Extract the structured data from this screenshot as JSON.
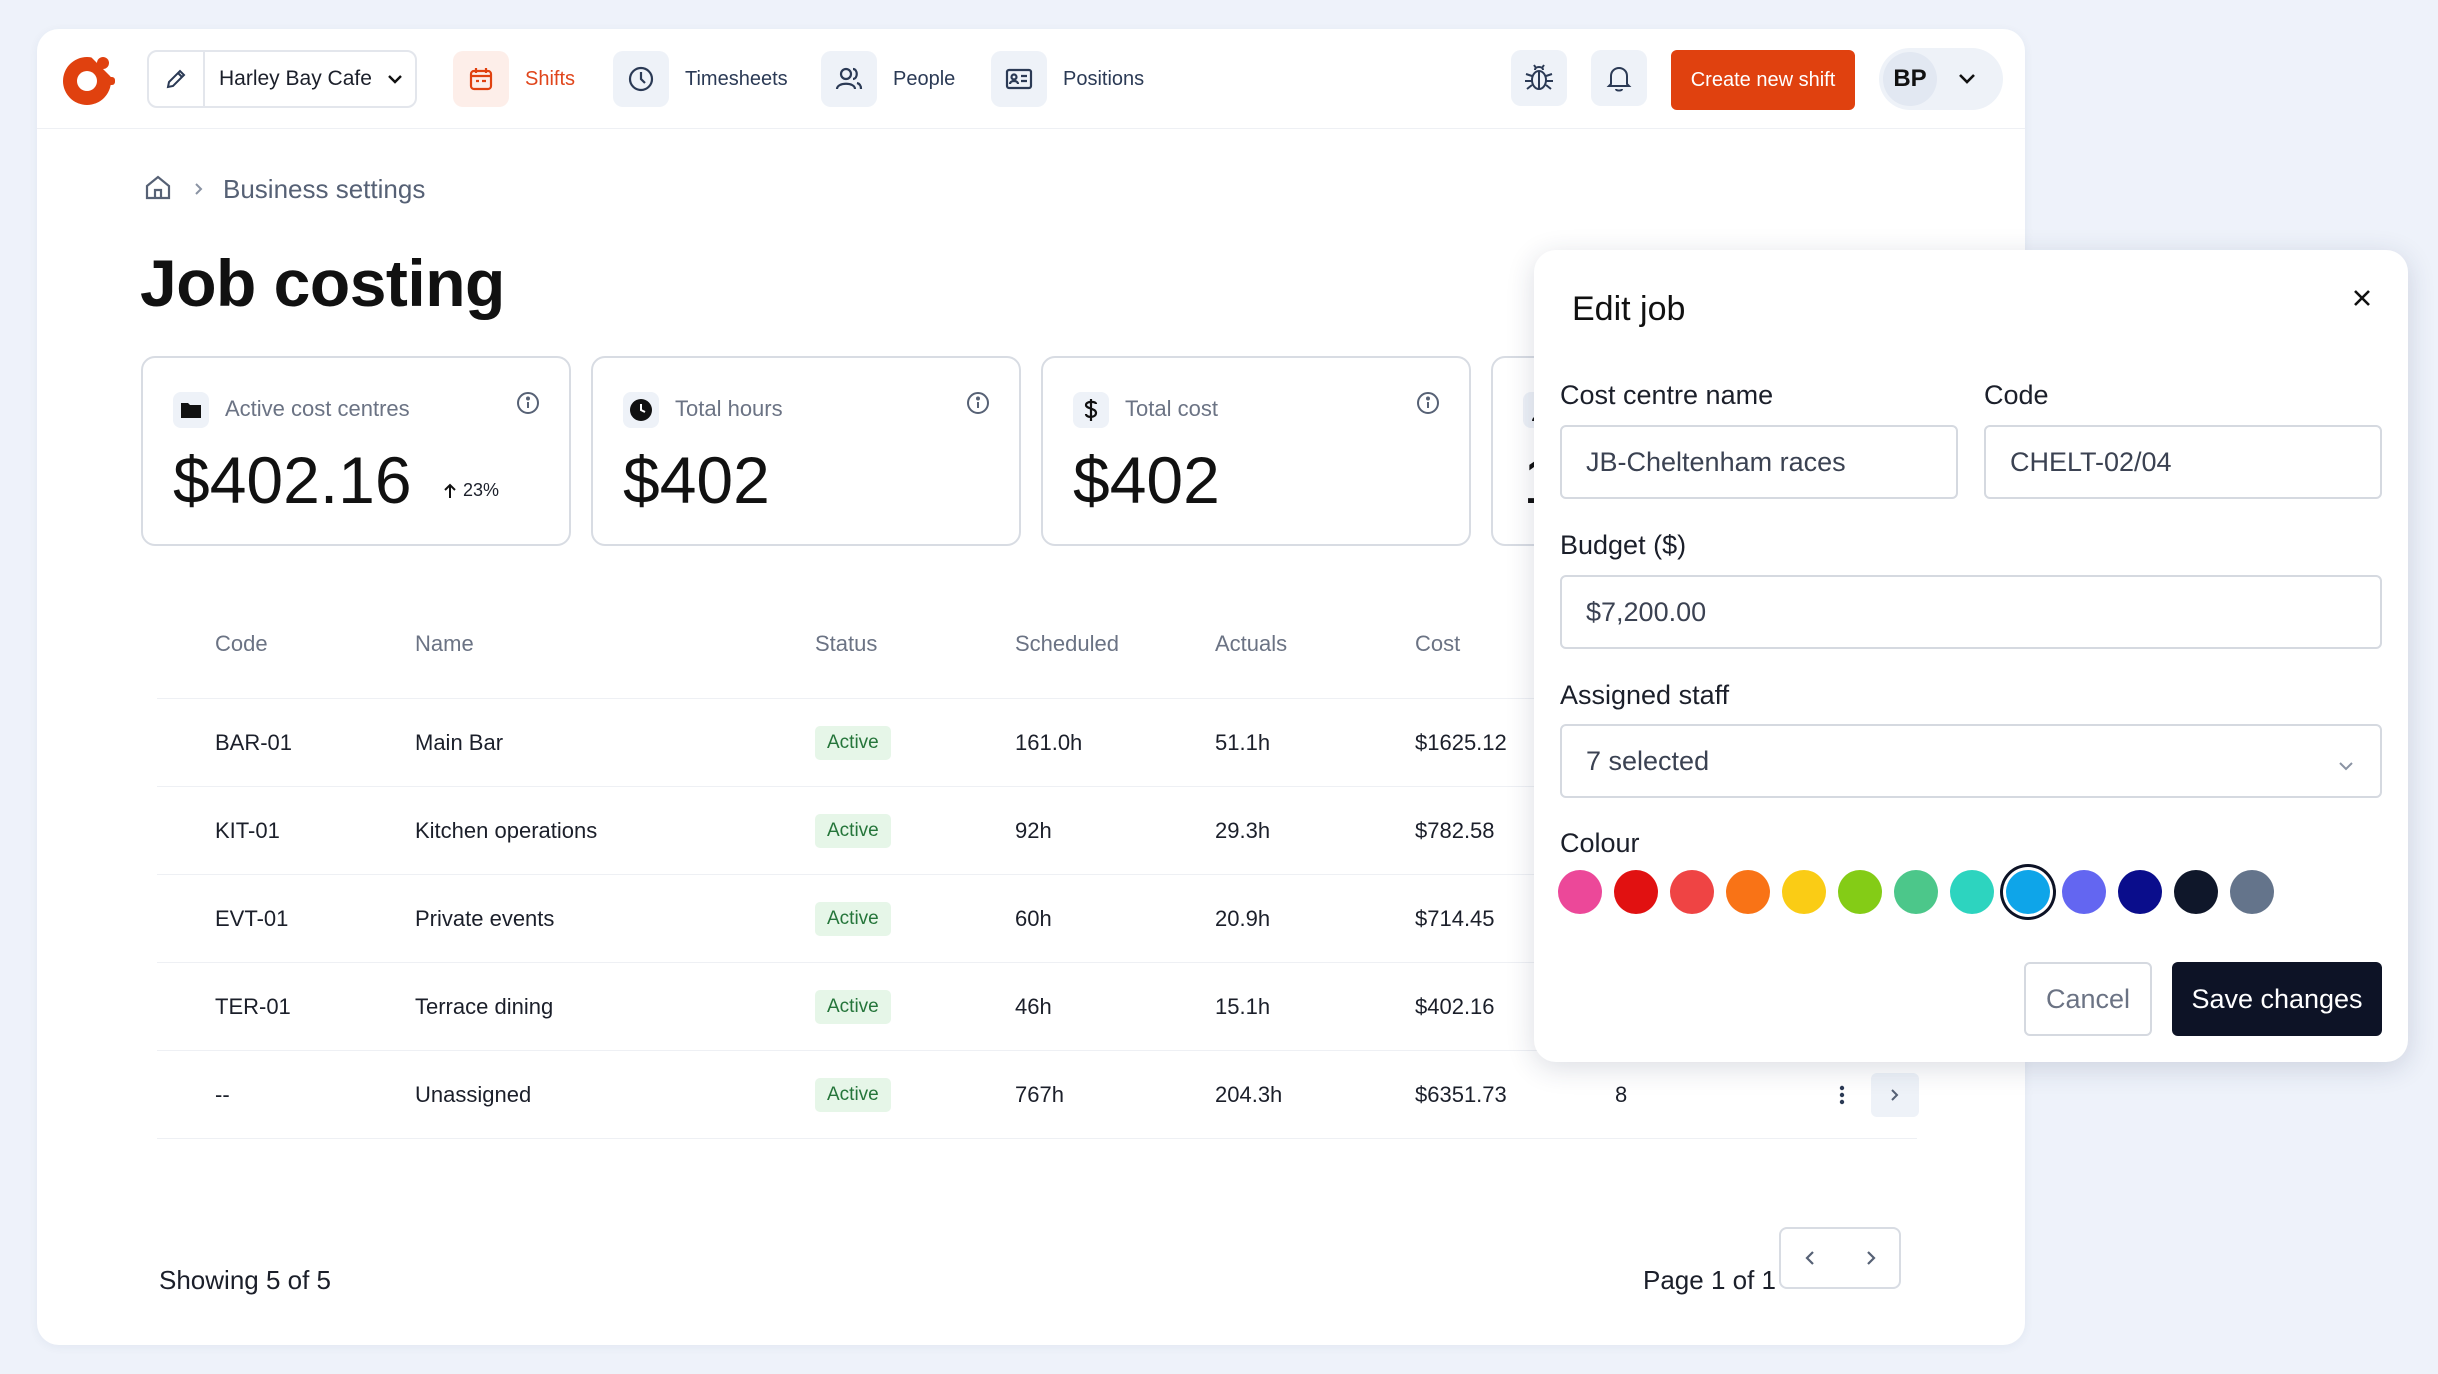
{
  "header": {
    "business_name": "Harley Bay Cafe",
    "nav": [
      {
        "label": "Shifts",
        "icon": "calendar-icon",
        "active": true
      },
      {
        "label": "Timesheets",
        "icon": "clock-icon",
        "active": false
      },
      {
        "label": "People",
        "icon": "people-icon",
        "active": false
      },
      {
        "label": "Positions",
        "icon": "id-card-icon",
        "active": false
      }
    ],
    "create_label": "Create new shift",
    "user_initials": "BP",
    "accent_color": "#e0410f"
  },
  "breadcrumb": {
    "current": "Business settings"
  },
  "page": {
    "title": "Job costing"
  },
  "stats": [
    {
      "label": "Active cost centres",
      "value": "$402.16",
      "trend": "23%",
      "icon": "folder-icon"
    },
    {
      "label": "Total hours",
      "value": "$402",
      "icon": "clock-icon"
    },
    {
      "label": "Total cost",
      "value": "$402",
      "icon": "dollar-icon"
    },
    {
      "label": "",
      "value": "1",
      "icon": "person-icon"
    }
  ],
  "table": {
    "columns": [
      "Code",
      "Name",
      "Status",
      "Scheduled",
      "Actuals",
      "Cost"
    ],
    "rows": [
      {
        "code": "BAR-01",
        "name": "Main Bar",
        "status": "Active",
        "scheduled": "161.0h",
        "actuals": "51.1h",
        "cost": "$1625.12"
      },
      {
        "code": "KIT-01",
        "name": "Kitchen operations",
        "status": "Active",
        "scheduled": "92h",
        "actuals": "29.3h",
        "cost": "$782.58"
      },
      {
        "code": "EVT-01",
        "name": "Private events",
        "status": "Active",
        "scheduled": "60h",
        "actuals": "20.9h",
        "cost": "$714.45"
      },
      {
        "code": "TER-01",
        "name": "Terrace dining",
        "status": "Active",
        "scheduled": "46h",
        "actuals": "15.1h",
        "cost": "$402.16"
      },
      {
        "code": "--",
        "name": "Unassigned",
        "status": "Active",
        "scheduled": "767h",
        "actuals": "204.3h",
        "cost": "$6351.73",
        "extra": "8"
      }
    ]
  },
  "footer": {
    "showing": "Showing 5 of 5",
    "page": "Page 1 of 1"
  },
  "edit_panel": {
    "title": "Edit job",
    "cost_centre_label": "Cost centre name",
    "cost_centre_value": "JB-Cheltenham races",
    "code_label": "Code",
    "code_value": "CHELT-02/04",
    "budget_label": "Budget ($)",
    "budget_value": "$7,200.00",
    "staff_label": "Assigned staff",
    "staff_value": "7 selected",
    "colour_label": "Colour",
    "colours": [
      "#ec4899",
      "#e11111",
      "#ef4444",
      "#f97316",
      "#facc15",
      "#84cc16",
      "#4cc78a",
      "#2dd4bf",
      "#0ea5e9",
      "#6366f1",
      "#0a0d8c",
      "#0f172a",
      "#64748b"
    ],
    "selected_colour": "#0ea5e9",
    "cancel_label": "Cancel",
    "save_label": "Save changes"
  }
}
